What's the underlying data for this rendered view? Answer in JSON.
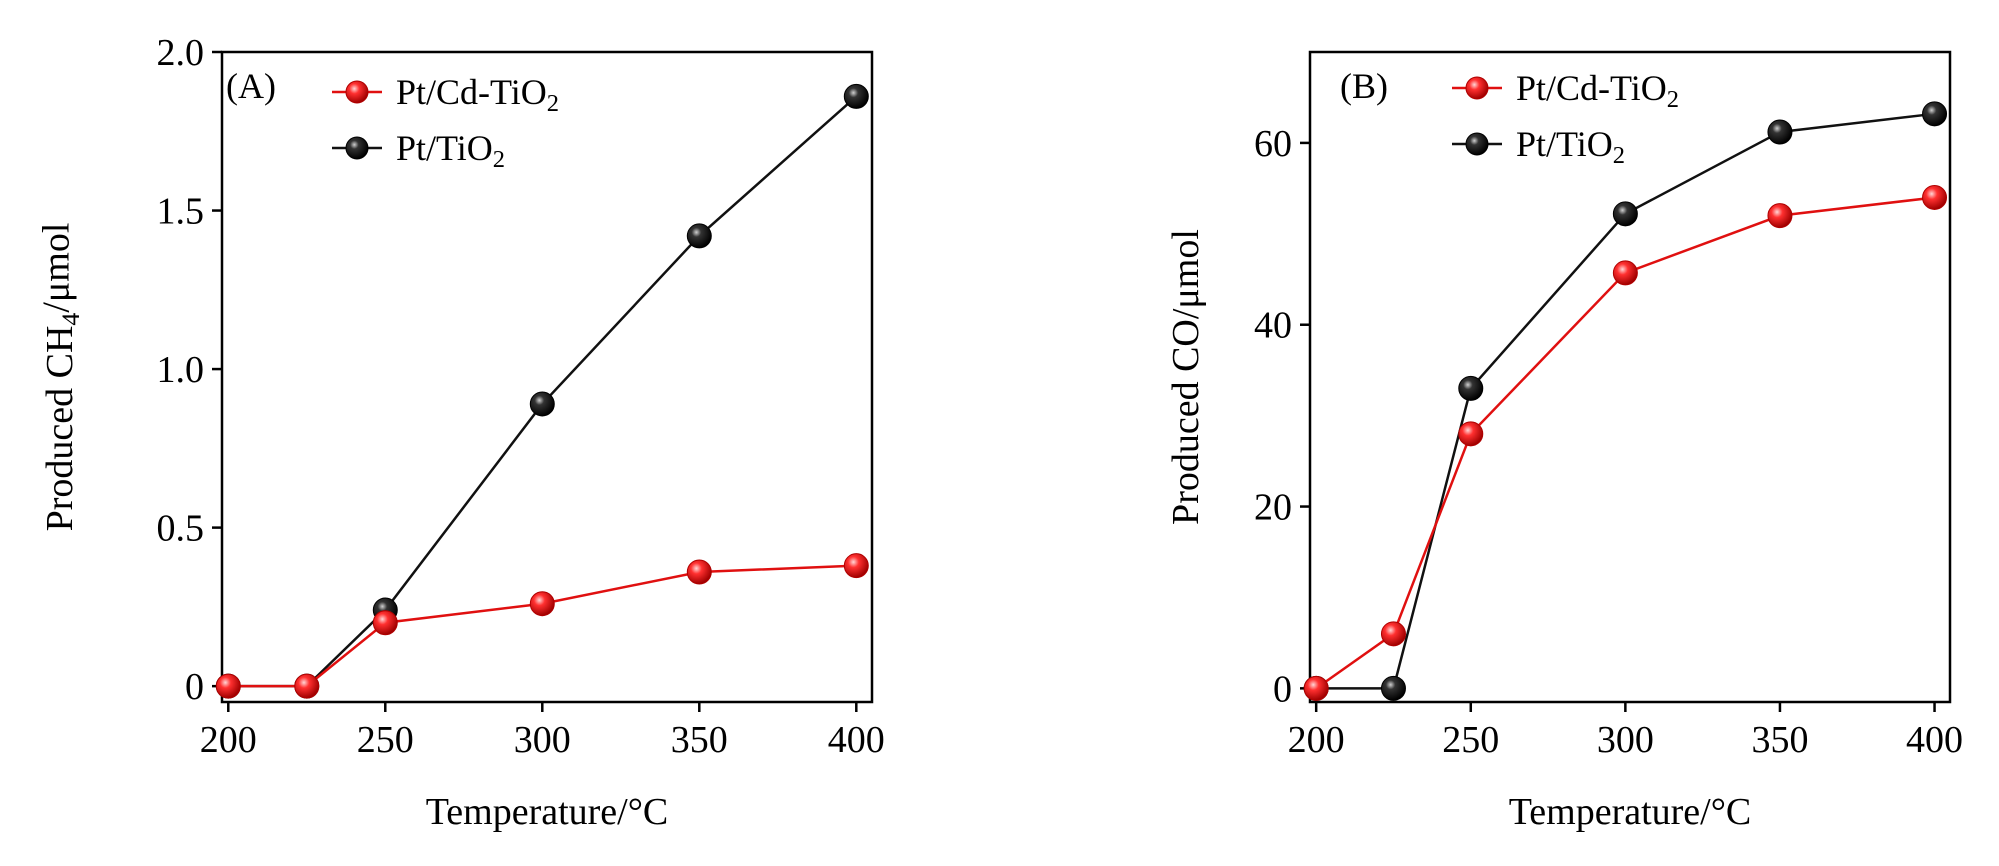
{
  "colors": {
    "series_red": "#e01010",
    "series_black": "#111111",
    "axis": "#000000"
  },
  "chart_data": [
    {
      "type": "line",
      "panel_label": "(A)",
      "xlabel": "Temperature/°C",
      "ylabel_parts": [
        "Produced CH",
        "4",
        "/μmol"
      ],
      "x_ticks": [
        "200",
        "250",
        "300",
        "350",
        "400"
      ],
      "y_ticks": [
        "0",
        "0.5",
        "1.0",
        "1.5",
        "2.0"
      ],
      "xlim": [
        198,
        405
      ],
      "ylim": [
        -0.05,
        2.0
      ],
      "legend_position": "top-left",
      "series": [
        {
          "name_parts": [
            "Pt/Cd-TiO",
            "2"
          ],
          "color": "#e01010",
          "x": [
            200,
            225,
            250,
            300,
            350,
            400
          ],
          "y": [
            0,
            0,
            0.2,
            0.26,
            0.36,
            0.38
          ]
        },
        {
          "name_parts": [
            "Pt/TiO",
            "2"
          ],
          "color": "#111111",
          "x": [
            200,
            225,
            250,
            300,
            350,
            400
          ],
          "y": [
            0,
            0,
            0.24,
            0.89,
            1.42,
            1.86
          ]
        }
      ]
    },
    {
      "type": "line",
      "panel_label": "(B)",
      "xlabel": "Temperature/°C",
      "ylabel_parts": [
        "Produced CO/μmol"
      ],
      "x_ticks": [
        "200",
        "250",
        "300",
        "350",
        "400"
      ],
      "y_ticks": [
        "0",
        "20",
        "40",
        "60"
      ],
      "xlim": [
        198,
        405
      ],
      "ylim": [
        -1.5,
        70
      ],
      "legend_position": "top-left",
      "series": [
        {
          "name_parts": [
            "Pt/Cd-TiO",
            "2"
          ],
          "color": "#e01010",
          "x": [
            200,
            225,
            250,
            300,
            350,
            400
          ],
          "y": [
            0,
            6,
            28,
            45.7,
            52,
            54
          ]
        },
        {
          "name_parts": [
            "Pt/TiO",
            "2"
          ],
          "color": "#111111",
          "x": [
            200,
            225,
            250,
            300,
            350,
            400
          ],
          "y": [
            0,
            0,
            33,
            52.2,
            61.2,
            63.2
          ]
        }
      ]
    }
  ]
}
